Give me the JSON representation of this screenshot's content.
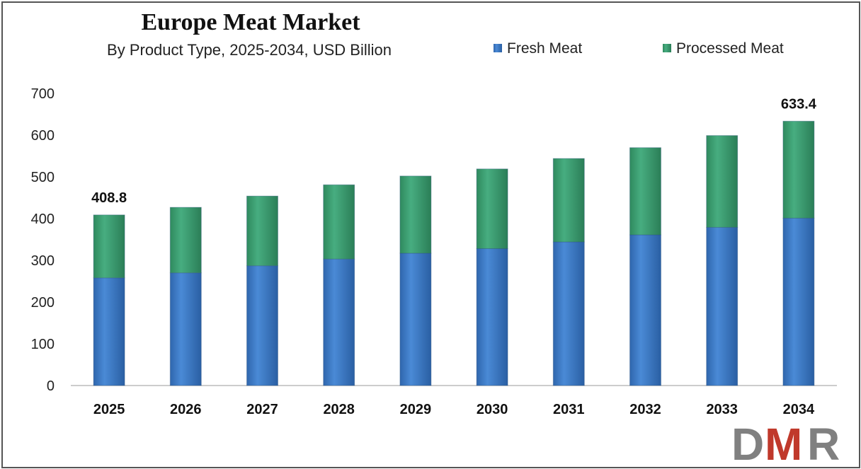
{
  "chart_data": {
    "type": "bar",
    "stacked": true,
    "title": "Europe Meat Market",
    "subtitle": "By Product Type, 2025-2034, USD Billion",
    "categories": [
      "2025",
      "2026",
      "2027",
      "2028",
      "2029",
      "2030",
      "2031",
      "2032",
      "2033",
      "2034"
    ],
    "series": [
      {
        "name": "Fresh Meat",
        "color": "#3a78c3",
        "values": [
          258,
          270,
          287,
          303,
          317,
          328,
          344,
          361,
          379,
          401
        ]
      },
      {
        "name": "Processed Meat",
        "color": "#3b9a6f",
        "values": [
          150.8,
          157,
          167,
          178,
          185,
          191,
          200,
          209,
          220,
          232.4
        ]
      }
    ],
    "ylim": [
      0,
      700
    ],
    "yticks": [
      "0",
      "100",
      "200",
      "300",
      "400",
      "500",
      "600",
      "700"
    ],
    "data_labels": [
      {
        "category": "2025",
        "text": "408.8"
      },
      {
        "category": "2034",
        "text": "633.4"
      }
    ],
    "legend_position": "top-right",
    "grid": false
  },
  "logo": {
    "text": "DMR",
    "colors": [
      "#808080",
      "#c0392b"
    ]
  }
}
